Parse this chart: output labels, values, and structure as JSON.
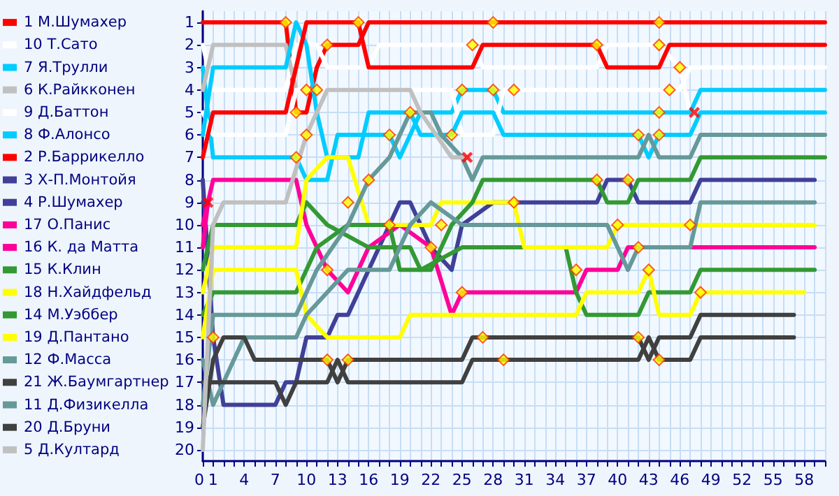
{
  "chart_data": {
    "type": "line",
    "grid": true,
    "legend": "left",
    "xlim": [
      0,
      60
    ],
    "xticks": [
      0,
      1,
      {
        "value": 2,
        "label": null
      },
      {
        "value": 3,
        "label": null
      },
      4,
      {
        "value": 5,
        "label": null
      },
      {
        "value": 6,
        "label": null
      },
      7,
      {
        "value": 8,
        "label": null
      },
      {
        "value": 9,
        "label": null
      },
      10,
      {
        "value": 11,
        "label": null
      },
      {
        "value": 12,
        "label": null
      },
      13,
      {
        "value": 14,
        "label": null
      },
      {
        "value": 15,
        "label": null
      },
      16,
      {
        "value": 17,
        "label": null
      },
      {
        "value": 18,
        "label": null
      },
      19,
      {
        "value": 20,
        "label": null
      },
      {
        "value": 21,
        "label": null
      },
      22,
      {
        "value": 23,
        "label": null
      },
      {
        "value": 24,
        "label": null
      },
      25,
      {
        "value": 26,
        "label": null
      },
      {
        "value": 27,
        "label": null
      },
      28,
      {
        "value": 29,
        "label": null
      },
      {
        "value": 30,
        "label": null
      },
      31,
      {
        "value": 32,
        "label": null
      },
      {
        "value": 33,
        "label": null
      },
      34,
      {
        "value": 35,
        "label": null
      },
      {
        "value": 36,
        "label": null
      },
      37,
      {
        "value": 38,
        "label": null
      },
      {
        "value": 39,
        "label": null
      },
      40,
      {
        "value": 41,
        "label": null
      },
      {
        "value": 42,
        "label": null
      },
      43,
      {
        "value": 44,
        "label": null
      },
      {
        "value": 45,
        "label": null
      },
      46,
      {
        "value": 47,
        "label": null
      },
      {
        "value": 48,
        "label": null
      },
      49,
      {
        "value": 50,
        "label": null
      },
      {
        "value": 51,
        "label": null
      },
      52,
      {
        "value": 53,
        "label": null
      },
      {
        "value": 54,
        "label": null
      },
      55,
      {
        "value": 56,
        "label": null
      },
      {
        "value": 57,
        "label": null
      },
      58,
      {
        "value": 59,
        "label": null
      },
      {
        "value": 60,
        "label": null
      }
    ],
    "ylim": [
      20.5,
      0.5
    ],
    "yticks": [
      1,
      2,
      3,
      4,
      5,
      6,
      7,
      8,
      9,
      10,
      11,
      12,
      13,
      14,
      15,
      16,
      17,
      18,
      19,
      20
    ],
    "series": [
      {
        "name": "1 М.Шумахер",
        "color": "#ff0000",
        "x": [
          0,
          8,
          9,
          10,
          11,
          12,
          15,
          16,
          60
        ],
        "values": [
          1,
          1,
          5,
          5,
          3,
          2,
          2,
          1,
          1
        ]
      },
      {
        "name": "10 Т.Сато",
        "color": "#ffffff",
        "x": [
          0,
          1,
          8,
          9,
          11,
          12,
          16,
          17,
          26,
          27,
          38,
          39,
          44,
          46,
          47
        ],
        "values": [
          2,
          4,
          4,
          2,
          2,
          3,
          3,
          2,
          2,
          3,
          3,
          2,
          2,
          3,
          5
        ]
      },
      {
        "name": "7 Я.Трулли",
        "color": "#00ccff",
        "x": [
          0,
          1,
          9,
          10,
          12,
          13,
          18,
          19,
          21,
          24,
          25,
          28,
          29,
          44,
          47,
          48,
          60
        ],
        "values": [
          3,
          7,
          7,
          8,
          8,
          6,
          6,
          7,
          5,
          5,
          4,
          4,
          5,
          5,
          5,
          4,
          4
        ]
      },
      {
        "name": "6 К.Райкконен",
        "color": "#c0c0c0",
        "x": [
          0,
          1,
          8,
          9
        ],
        "values": [
          4,
          2,
          2,
          4
        ]
      },
      {
        "name": "9 Д.Баттон",
        "color": "#ffffff",
        "x": [
          0,
          1,
          8,
          9,
          24,
          25,
          28,
          29,
          45,
          46,
          47,
          60
        ],
        "values": [
          5,
          6,
          6,
          4,
          4,
          6,
          6,
          4,
          4,
          4,
          3,
          3
        ]
      },
      {
        "name": "8 Ф.Алонсо",
        "color": "#00ccff",
        "x": [
          0,
          1,
          8,
          9,
          10,
          11,
          12,
          15,
          16,
          20,
          21,
          24,
          25,
          28,
          29,
          42,
          43,
          44,
          47,
          48,
          60
        ],
        "values": [
          6,
          3,
          3,
          1,
          2,
          5,
          7,
          7,
          5,
          5,
          6,
          6,
          5,
          5,
          6,
          6,
          7,
          6,
          6,
          5,
          5
        ]
      },
      {
        "name": "2 Р.Баррикелло",
        "color": "#ff0000",
        "x": [
          0,
          1,
          8,
          9,
          10,
          15,
          16,
          26,
          27,
          38,
          39,
          44,
          45,
          60
        ],
        "values": [
          7,
          5,
          5,
          3,
          1,
          1,
          3,
          3,
          2,
          2,
          3,
          3,
          2,
          2
        ]
      },
      {
        "name": "3 Х-П.Монтойя",
        "color": "#404098",
        "x": [
          0,
          1,
          2,
          7,
          8,
          9,
          10,
          12,
          13,
          14,
          15,
          16,
          17,
          18,
          19,
          20,
          22,
          24,
          25,
          28,
          31,
          38,
          39,
          41,
          42,
          47,
          48,
          59
        ],
        "values": [
          8,
          15,
          18,
          18,
          17,
          17,
          15,
          15,
          14,
          14,
          13,
          12,
          11,
          10,
          9,
          9,
          11,
          12,
          10,
          9,
          9,
          9,
          8,
          8,
          9,
          9,
          8,
          8
        ]
      },
      {
        "name": "4 Р.Шумахер",
        "color": "#404098",
        "x": [
          0,
          0.5
        ],
        "values": [
          9,
          9
        ]
      },
      {
        "name": "17 О.Панис",
        "color": "#ff0099",
        "x": [
          0,
          1,
          9,
          10,
          12,
          14,
          16,
          19,
          22,
          24,
          25,
          36,
          37,
          40,
          41,
          59
        ],
        "values": [
          10,
          8,
          8,
          10,
          12,
          13,
          11,
          10,
          11,
          14,
          13,
          13,
          12,
          12,
          11,
          11
        ]
      },
      {
        "name": "16 К. да Матта",
        "color": "#ff0099",
        "x": [
          0,
          0.5
        ],
        "values": [
          11,
          9
        ]
      },
      {
        "name": "15 К.Клин",
        "color": "#339933",
        "x": [
          0,
          1,
          9,
          10,
          12,
          16,
          20,
          21,
          25,
          35,
          36,
          37,
          42,
          43,
          47,
          48,
          59
        ],
        "values": [
          12,
          10,
          10,
          9,
          10,
          11,
          11,
          12,
          11,
          11,
          13,
          14,
          14,
          13,
          13,
          12,
          12
        ]
      },
      {
        "name": "18 Н.Хайдфельд",
        "color": "#ffff00",
        "x": [
          0,
          1,
          9,
          10,
          12,
          14,
          16,
          22,
          23,
          30,
          31,
          39,
          40,
          59
        ],
        "values": [
          13,
          11,
          11,
          8,
          7,
          7,
          10,
          10,
          9,
          9,
          11,
          11,
          10,
          10
        ]
      },
      {
        "name": "14 М.Уэббер",
        "color": "#339933",
        "x": [
          0,
          1,
          9,
          11,
          14,
          18,
          19,
          22,
          24,
          26,
          27,
          38,
          39,
          41,
          42,
          47,
          48,
          60
        ],
        "values": [
          14,
          13,
          13,
          11,
          10,
          10,
          12,
          12,
          10,
          9,
          8,
          8,
          9,
          9,
          8,
          8,
          7,
          7
        ]
      },
      {
        "name": "19 Д.Пантано",
        "color": "#ffff00",
        "x": [
          0,
          1,
          9,
          10,
          12,
          19,
          20,
          36,
          37,
          42,
          43,
          44,
          47,
          48,
          58
        ],
        "values": [
          15,
          12,
          12,
          14,
          15,
          15,
          14,
          14,
          13,
          13,
          12,
          14,
          14,
          13,
          13
        ]
      },
      {
        "name": "12 Ф.Масса",
        "color": "#669999",
        "x": [
          0,
          1,
          2,
          4,
          9,
          10,
          12,
          14,
          18,
          20,
          22,
          25,
          39,
          40,
          41,
          42,
          47,
          48,
          59
        ],
        "values": [
          16,
          18,
          17,
          15,
          15,
          14,
          13,
          12,
          12,
          10,
          9,
          10,
          10,
          11,
          12,
          11,
          11,
          9,
          9
        ]
      },
      {
        "name": "21 Ж.Баумгартнер",
        "color": "#404040",
        "x": [
          0,
          1,
          7,
          8,
          9,
          12,
          13,
          14,
          25,
          26,
          42,
          43,
          44,
          47,
          48,
          57
        ],
        "values": [
          17,
          17,
          17,
          18,
          17,
          17,
          16,
          17,
          17,
          16,
          16,
          15,
          16,
          16,
          15,
          15
        ]
      },
      {
        "name": "11 Д.Физикелла",
        "color": "#669999",
        "x": [
          0,
          1,
          9,
          11,
          14,
          16,
          18,
          19,
          20,
          22,
          23,
          25,
          26,
          27,
          42,
          43,
          44,
          47,
          48,
          60
        ],
        "values": [
          18,
          14,
          14,
          12,
          10,
          8,
          7,
          6,
          5,
          5,
          6,
          7,
          8,
          7,
          7,
          6,
          7,
          7,
          6,
          6
        ]
      },
      {
        "name": "20 Д.Бруни",
        "color": "#404040",
        "x": [
          0,
          1,
          2,
          4,
          5,
          12,
          13,
          14,
          25,
          26,
          42,
          43,
          44,
          47,
          48,
          57
        ],
        "values": [
          19,
          16,
          15,
          15,
          16,
          16,
          17,
          16,
          16,
          15,
          15,
          16,
          15,
          15,
          14,
          14
        ]
      },
      {
        "name": "5 Д.Култард",
        "color": "#c0c0c0",
        "x": [
          0,
          1,
          2,
          8,
          10,
          12,
          20,
          21,
          24,
          25.5
        ],
        "values": [
          20,
          10,
          9,
          9,
          6,
          4,
          4,
          5,
          7,
          7
        ]
      },
      {
        "type": "scatter",
        "marker": "diamond",
        "color": "#ffff00",
        "x": [
          8,
          15,
          12,
          10,
          11,
          9,
          10,
          18,
          9,
          16,
          14,
          18,
          1,
          12,
          12,
          14,
          28,
          26,
          38,
          25,
          28,
          30,
          20,
          24,
          38,
          23,
          30,
          40,
          22,
          25,
          27,
          29,
          36,
          44,
          44,
          46,
          45,
          44,
          42,
          44,
          41,
          47,
          42,
          43,
          42,
          44,
          48
        ],
        "values": [
          1,
          1,
          2,
          4,
          4,
          5,
          6,
          6,
          7,
          8,
          9,
          10,
          15,
          12,
          16,
          16,
          1,
          2,
          2,
          4,
          4,
          4,
          5,
          6,
          8,
          10,
          9,
          10,
          11,
          13,
          15,
          16,
          12,
          1,
          2,
          3,
          4,
          5,
          6,
          6,
          8,
          10,
          11,
          12,
          15,
          16,
          13
        ]
      },
      {
        "type": "scatter",
        "marker": "cross",
        "color": "#ff0000",
        "x": [
          0.5,
          25.5,
          47.4
        ],
        "values": [
          9,
          7,
          5
        ]
      }
    ]
  }
}
